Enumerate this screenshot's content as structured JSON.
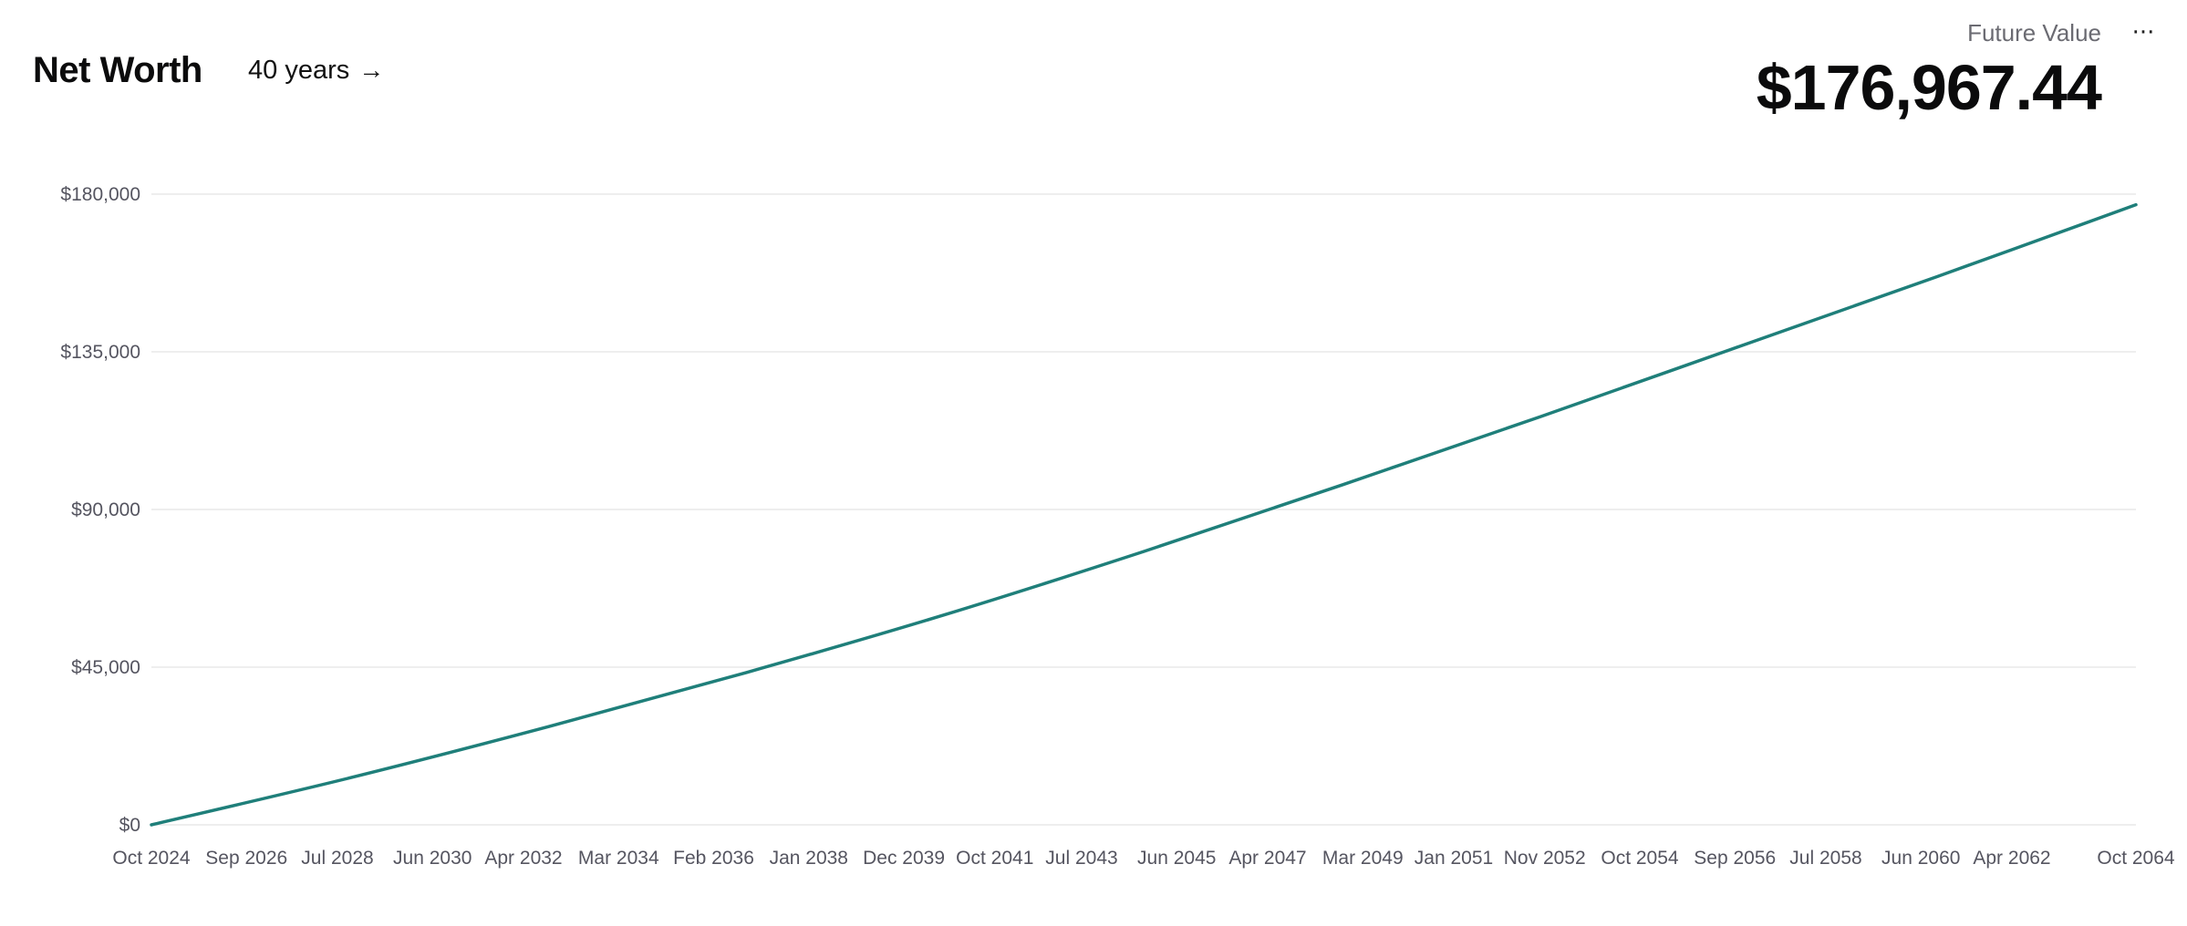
{
  "header": {
    "title": "Net Worth",
    "period_label": "40 years",
    "future_value_label": "Future Value",
    "future_value": "$176,967.44",
    "menu_label": "···"
  },
  "colors": {
    "line": "#1f7f7a",
    "grid": "#eeeeee",
    "tick_text": "#555560"
  },
  "chart_data": {
    "type": "line",
    "title": "",
    "xlabel": "",
    "ylabel": "",
    "ylim": [
      0,
      180000
    ],
    "grid": true,
    "y_ticks": [
      {
        "value": 0,
        "label": "$0"
      },
      {
        "value": 45000,
        "label": "$45,000"
      },
      {
        "value": 90000,
        "label": "$90,000"
      },
      {
        "value": 135000,
        "label": "$135,000"
      },
      {
        "value": 180000,
        "label": "$180,000"
      }
    ],
    "x_range": [
      "Oct 2024",
      "Oct 2064"
    ],
    "x_ticks": [
      {
        "date": "2024-10",
        "label": "Oct 2024"
      },
      {
        "date": "2026-09",
        "label": "Sep 2026"
      },
      {
        "date": "2028-07",
        "label": "Jul 2028"
      },
      {
        "date": "2030-06",
        "label": "Jun 2030"
      },
      {
        "date": "2032-04",
        "label": "Apr 2032"
      },
      {
        "date": "2034-03",
        "label": "Mar 2034"
      },
      {
        "date": "2036-02",
        "label": "Feb 2036"
      },
      {
        "date": "2038-01",
        "label": "Jan 2038"
      },
      {
        "date": "2039-12",
        "label": "Dec 2039"
      },
      {
        "date": "2041-10",
        "label": "Oct 2041"
      },
      {
        "date": "2043-07",
        "label": "Jul 2043"
      },
      {
        "date": "2045-06",
        "label": "Jun 2045"
      },
      {
        "date": "2047-04",
        "label": "Apr 2047"
      },
      {
        "date": "2049-03",
        "label": "Mar 2049"
      },
      {
        "date": "2051-01",
        "label": "Jan 2051"
      },
      {
        "date": "2052-11",
        "label": "Nov 2052"
      },
      {
        "date": "2054-10",
        "label": "Oct 2054"
      },
      {
        "date": "2056-09",
        "label": "Sep 2056"
      },
      {
        "date": "2058-07",
        "label": "Jul 2058"
      },
      {
        "date": "2060-06",
        "label": "Jun 2060"
      },
      {
        "date": "2062-04",
        "label": "Apr 2062"
      },
      {
        "date": "2064-10",
        "label": "Oct 2064"
      }
    ],
    "series": [
      {
        "points": [
          {
            "x": "2024-10",
            "y": 0
          },
          {
            "x": "2028-10",
            "y": 13400
          },
          {
            "x": "2032-10",
            "y": 28000
          },
          {
            "x": "2036-10",
            "y": 43500
          },
          {
            "x": "2040-10",
            "y": 60000
          },
          {
            "x": "2044-10",
            "y": 78000
          },
          {
            "x": "2048-10",
            "y": 97000
          },
          {
            "x": "2052-10",
            "y": 116500
          },
          {
            "x": "2056-10",
            "y": 136500
          },
          {
            "x": "2060-10",
            "y": 156500
          },
          {
            "x": "2064-10",
            "y": 176967.44
          }
        ]
      }
    ]
  }
}
